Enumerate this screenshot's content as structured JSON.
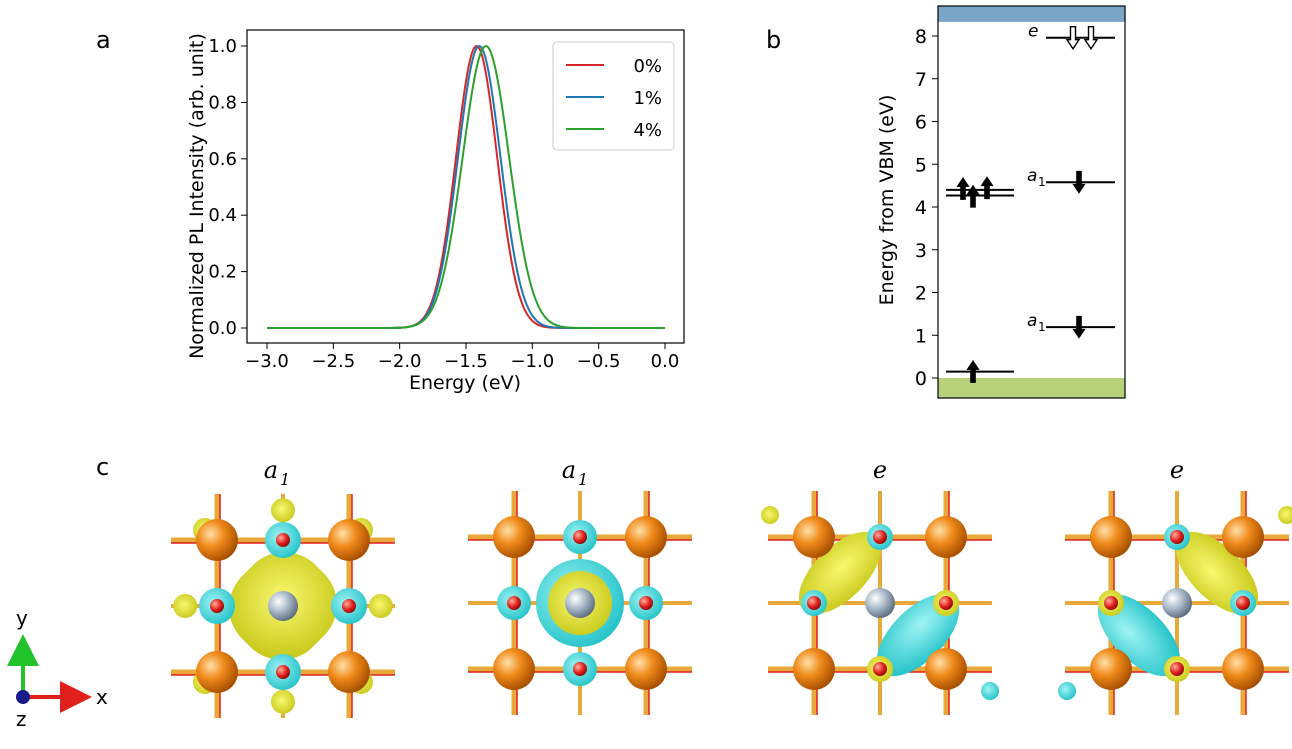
{
  "figure": {
    "panel_labels": [
      "a",
      "b",
      "c"
    ]
  },
  "chart_data": [
    {
      "type": "line",
      "xlabel": "Energy (eV)",
      "ylabel": "Normalized PL Intensity (arb. unit)",
      "xlim": [
        -3.0,
        0.0
      ],
      "ylim": [
        0.0,
        1.0
      ],
      "xticks": [
        "−3.0",
        "−2.5",
        "−2.0",
        "−1.5",
        "−1.0",
        "−0.5",
        "0.0"
      ],
      "xtick_values": [
        -3.0,
        -2.5,
        -2.0,
        -1.5,
        -1.0,
        -0.5,
        0.0
      ],
      "yticks": [
        "0.0",
        "0.2",
        "0.4",
        "0.6",
        "0.8",
        "1.0"
      ],
      "ytick_values": [
        0.0,
        0.2,
        0.4,
        0.6,
        0.8,
        1.0
      ],
      "legend_position": "top-right",
      "series": [
        {
          "name": "0%",
          "color": "#d62728",
          "peak": -1.42,
          "sigma": 0.155
        },
        {
          "name": "1%",
          "color": "#1f77b4",
          "peak": -1.4,
          "sigma": 0.16
        },
        {
          "name": "4%",
          "color": "#2ca02c",
          "peak": -1.35,
          "sigma": 0.175
        }
      ]
    },
    {
      "type": "level-diagram",
      "ylabel": "Energy from VBM (eV)",
      "ylim": [
        -0.6,
        8.6
      ],
      "yticks": [
        "0",
        "1",
        "2",
        "3",
        "4",
        "5",
        "6",
        "7",
        "8"
      ],
      "ytick_values": [
        0,
        1,
        2,
        3,
        4,
        5,
        6,
        7,
        8
      ],
      "vbm_band_top": 0.0,
      "cbm_band_bottom": 8.33,
      "vbm_color": "#b5d17a",
      "cbm_color": "#7aa6c8",
      "levels": [
        {
          "channel": "up",
          "energy": 0.15,
          "label": "",
          "occupancy": "filled-up"
        },
        {
          "channel": "up",
          "energy": 4.27,
          "label": "",
          "occupancy": "filled-up"
        },
        {
          "channel": "up",
          "energy": 4.4,
          "label": "",
          "occupancy": "filled-up"
        },
        {
          "channel": "down",
          "energy": 1.19,
          "label": "a",
          "occupancy": "filled-down"
        },
        {
          "channel": "down",
          "energy": 4.58,
          "label": "a",
          "occupancy": "filled-down"
        },
        {
          "channel": "down",
          "energy": 7.96,
          "label": "e",
          "occupancy": "empty-down"
        }
      ],
      "subscript": "1"
    }
  ],
  "orbitals": {
    "titles": [
      {
        "main": "a",
        "sub": "1"
      },
      {
        "main": "a",
        "sub": "1"
      },
      {
        "main": "e",
        "sub": ""
      },
      {
        "main": "e",
        "sub": ""
      }
    ],
    "colors": {
      "yellow": "#e6e62e",
      "cyan": "#3fd9d9",
      "orange": "#f08a1a",
      "red": "#e0201c",
      "center": "#a9b8c8"
    }
  },
  "axes_indicator": {
    "y": "y",
    "x": "x",
    "z": "z"
  }
}
